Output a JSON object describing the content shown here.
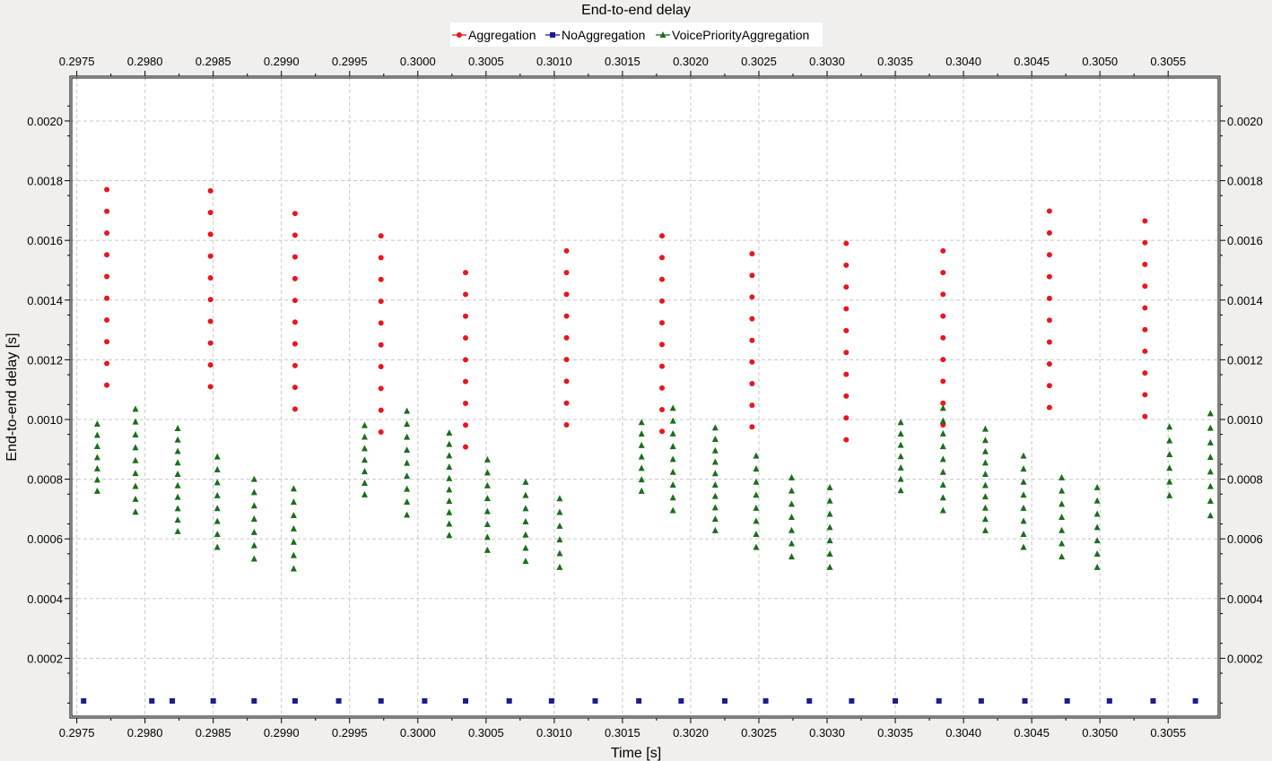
{
  "chart_data": {
    "type": "scatter",
    "title": "End-to-end delay",
    "xlabel": "Time [s]",
    "ylabel": "End-to-end delay [s]",
    "xlim": [
      0.29745,
      0.30588
    ],
    "ylim": [
      0.0,
      0.00215
    ],
    "x_ticks": [
      0.2975,
      0.298,
      0.2985,
      0.299,
      0.2995,
      0.3,
      0.3005,
      0.301,
      0.3015,
      0.302,
      0.3025,
      0.303,
      0.3035,
      0.304,
      0.3045,
      0.305,
      0.3055
    ],
    "x_tick_labels": [
      "0.2975",
      "0.2980",
      "0.2985",
      "0.2990",
      "0.2995",
      "0.3000",
      "0.3005",
      "0.3010",
      "0.3015",
      "0.3020",
      "0.3025",
      "0.3030",
      "0.3035",
      "0.3040",
      "0.3045",
      "0.3050",
      "0.3055"
    ],
    "y_ticks": [
      0.0002,
      0.0004,
      0.0006,
      0.0008,
      0.001,
      0.0012,
      0.0014,
      0.0016,
      0.0018,
      0.002
    ],
    "y_tick_labels": [
      "0.0002",
      "0.0004",
      "0.0006",
      "0.0008",
      "0.0010",
      "0.0012",
      "0.0014",
      "0.0016",
      "0.0018",
      "0.0020"
    ],
    "grid": true,
    "legend_position": "top",
    "series": [
      {
        "name": "Aggregation",
        "color": "#e8161f",
        "marker": "circle",
        "groups": [
          {
            "x": 0.29772,
            "y_max": 0.00177,
            "y_min": 0.001115,
            "count": 10
          },
          {
            "x": 0.29848,
            "y_max": 0.001766,
            "y_min": 0.00111,
            "count": 10
          },
          {
            "x": 0.2991,
            "y_max": 0.00169,
            "y_min": 0.001035,
            "count": 10
          },
          {
            "x": 0.29973,
            "y_max": 0.001615,
            "y_min": 0.000958,
            "count": 10
          },
          {
            "x": 0.30035,
            "y_max": 0.001492,
            "y_min": 0.000908,
            "count": 9
          },
          {
            "x": 0.30109,
            "y_max": 0.001565,
            "y_min": 0.000982,
            "count": 9
          },
          {
            "x": 0.30179,
            "y_max": 0.001615,
            "y_min": 0.00096,
            "count": 10
          },
          {
            "x": 0.30245,
            "y_max": 0.001555,
            "y_min": 0.000975,
            "count": 9
          },
          {
            "x": 0.30314,
            "y_max": 0.00159,
            "y_min": 0.000932,
            "count": 10
          },
          {
            "x": 0.30385,
            "y_max": 0.001565,
            "y_min": 0.000982,
            "count": 9
          },
          {
            "x": 0.30463,
            "y_max": 0.001698,
            "y_min": 0.00104,
            "count": 10
          },
          {
            "x": 0.30533,
            "y_max": 0.001665,
            "y_min": 0.00101,
            "count": 10
          }
        ]
      },
      {
        "name": "NoAggregation",
        "color": "#1c1c8c",
        "marker": "square",
        "y": 5.7e-05,
        "x": [
          0.29755,
          0.29805,
          0.2982,
          0.2985,
          0.2988,
          0.2991,
          0.29942,
          0.29973,
          0.30005,
          0.30035,
          0.30067,
          0.30098,
          0.3013,
          0.30162,
          0.30193,
          0.30225,
          0.30255,
          0.30287,
          0.30318,
          0.3035,
          0.30382,
          0.30413,
          0.30445,
          0.30476,
          0.30507,
          0.30539,
          0.3057
        ]
      },
      {
        "name": "VoicePriorityAggregation",
        "color": "#1a6e1a",
        "marker": "triangle",
        "groups": [
          {
            "x": 0.29765,
            "y_max": 0.000985,
            "y_min": 0.00076,
            "count": 7
          },
          {
            "x": 0.29793,
            "y_max": 0.001035,
            "y_min": 0.00069,
            "count": 9
          },
          {
            "x": 0.29824,
            "y_max": 0.00097,
            "y_min": 0.000625,
            "count": 10
          },
          {
            "x": 0.29853,
            "y_max": 0.000875,
            "y_min": 0.000572,
            "count": 8
          },
          {
            "x": 0.2988,
            "y_max": 0.0008,
            "y_min": 0.000533,
            "count": 7
          },
          {
            "x": 0.29909,
            "y_max": 0.000768,
            "y_min": 0.0005,
            "count": 7
          },
          {
            "x": 0.29961,
            "y_max": 0.00098,
            "y_min": 0.000748,
            "count": 7
          },
          {
            "x": 0.29992,
            "y_max": 0.001028,
            "y_min": 0.00068,
            "count": 9
          },
          {
            "x": 0.30023,
            "y_max": 0.000955,
            "y_min": 0.000612,
            "count": 10
          },
          {
            "x": 0.30051,
            "y_max": 0.000865,
            "y_min": 0.000562,
            "count": 8
          },
          {
            "x": 0.30079,
            "y_max": 0.00079,
            "y_min": 0.000525,
            "count": 7
          },
          {
            "x": 0.30104,
            "y_max": 0.000735,
            "y_min": 0.000505,
            "count": 6
          },
          {
            "x": 0.30164,
            "y_max": 0.00099,
            "y_min": 0.00076,
            "count": 7
          },
          {
            "x": 0.30187,
            "y_max": 0.001038,
            "y_min": 0.000695,
            "count": 9
          },
          {
            "x": 0.30218,
            "y_max": 0.000972,
            "y_min": 0.000628,
            "count": 10
          },
          {
            "x": 0.30248,
            "y_max": 0.000878,
            "y_min": 0.000572,
            "count": 8
          },
          {
            "x": 0.30274,
            "y_max": 0.000805,
            "y_min": 0.00054,
            "count": 7
          },
          {
            "x": 0.30302,
            "y_max": 0.000772,
            "y_min": 0.000505,
            "count": 7
          },
          {
            "x": 0.30354,
            "y_max": 0.00099,
            "y_min": 0.000762,
            "count": 7
          },
          {
            "x": 0.30385,
            "y_max": 0.001038,
            "y_min": 0.000695,
            "count": 9
          },
          {
            "x": 0.30416,
            "y_max": 0.000968,
            "y_min": 0.000628,
            "count": 10
          },
          {
            "x": 0.30444,
            "y_max": 0.000878,
            "y_min": 0.000572,
            "count": 8
          },
          {
            "x": 0.30472,
            "y_max": 0.000805,
            "y_min": 0.00054,
            "count": 7
          },
          {
            "x": 0.30498,
            "y_max": 0.000772,
            "y_min": 0.000505,
            "count": 7
          },
          {
            "x": 0.30551,
            "y_max": 0.000975,
            "y_min": 0.000745,
            "count": 6
          },
          {
            "x": 0.30581,
            "y_max": 0.00102,
            "y_min": 0.000678,
            "count": 8
          }
        ]
      }
    ]
  }
}
